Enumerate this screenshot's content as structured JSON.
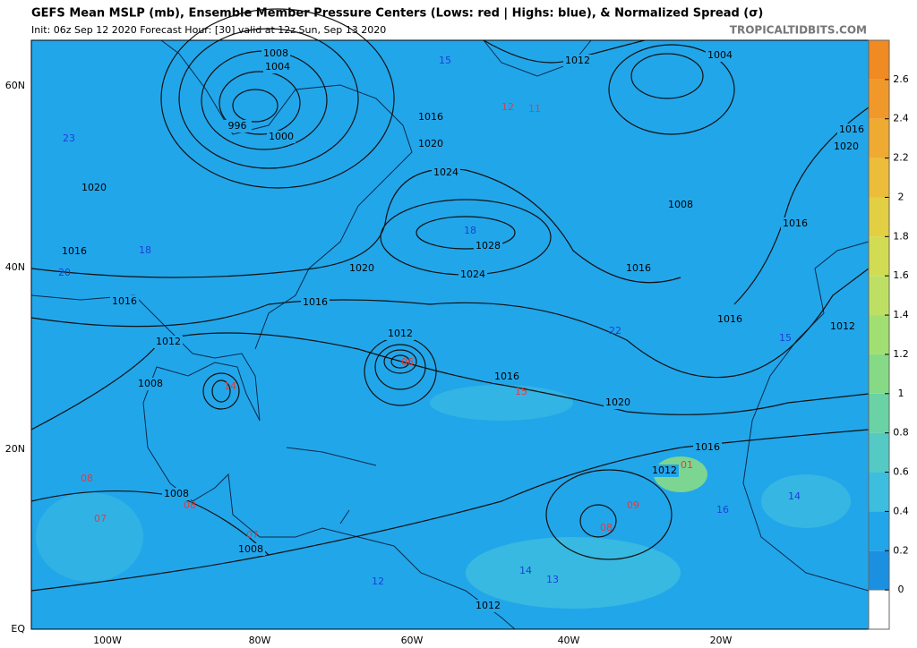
{
  "header": {
    "title": "GEFS Mean MSLP (mb), Ensemble Member Pressure Centers (Lows: red | Highs: blue), & Normalized Spread (σ)",
    "subtitle": "Init: 06z Sep 12 2020   Forecast Hour: [30]   valid at 12z Sun, Sep 13 2020",
    "credit": "TROPICALTIDBITS.COM"
  },
  "map": {
    "lat_labels": [
      "60N",
      "40N",
      "20N",
      "EQ"
    ],
    "lon_labels": [
      "100W",
      "80W",
      "60W",
      "40W",
      "20W"
    ],
    "isobar_labels": [
      "1008",
      "1004",
      "996",
      "1000",
      "1012",
      "1004",
      "1016",
      "1020",
      "1024",
      "1028",
      "1024",
      "1020",
      "1016",
      "1016",
      "1016",
      "1020",
      "1012",
      "1008",
      "1012",
      "1016",
      "1020",
      "1016",
      "1012",
      "1008",
      "1008",
      "1012",
      "1008",
      "1016",
      "1016",
      "1016",
      "1012",
      "1020",
      "1016"
    ],
    "low_centers": [
      "08",
      "07",
      "11",
      "12",
      "14",
      "08",
      "07",
      "08",
      "09",
      "06",
      "15",
      "01"
    ],
    "high_centers": [
      "23",
      "20",
      "18",
      "15",
      "22",
      "16",
      "14",
      "13",
      "15",
      "14",
      "18",
      "12"
    ]
  },
  "colorbar": {
    "ticks": [
      0,
      0.2,
      0.4,
      0.6,
      0.8,
      1,
      1.2,
      1.4,
      1.6,
      1.8,
      2,
      2.2,
      2.4,
      2.6
    ],
    "lim": [
      -0.2,
      2.8
    ],
    "colors": [
      "#1b8fe0",
      "#22a6ea",
      "#3ebedf",
      "#55c9c4",
      "#6ad2a4",
      "#86da86",
      "#a2df72",
      "#bde064",
      "#d2dc52",
      "#e2cf44",
      "#ebbd3a",
      "#efaa32",
      "#f0992a",
      "#f08a22"
    ],
    "below_color": "#ffffff"
  }
}
